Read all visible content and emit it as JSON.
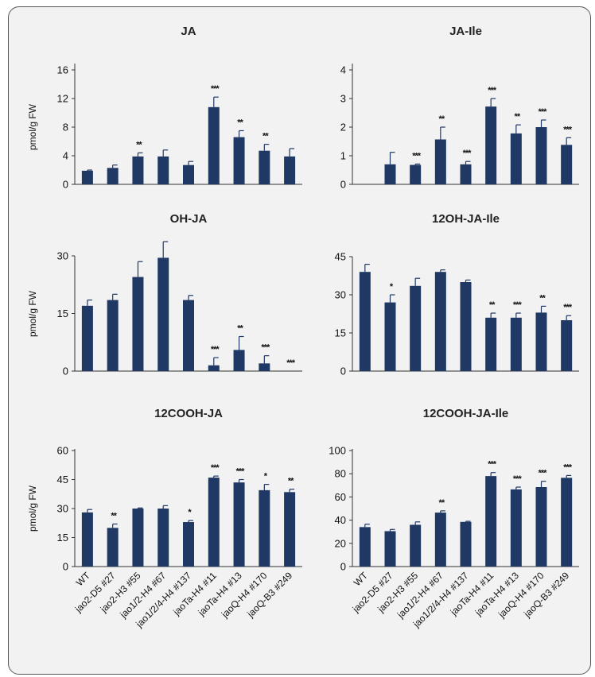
{
  "colors": {
    "bar": "#1f3864",
    "axis": "#333333",
    "frame": "#555555",
    "background": "#f2f2f2"
  },
  "categories": [
    "WT",
    "jao2-D5 #27",
    "jao2-H3 #55",
    "jao1/2-H4 #67",
    "jao1/2/4-H4 #137",
    "jaoTa-H4 #11",
    "jaoTa-H4 #13",
    "jaoQ-H4 #170",
    "jaoQ-B3 #249"
  ],
  "chart_data": [
    {
      "type": "bar",
      "title": "JA",
      "ylabel": "pmol/g FW",
      "ylim": [
        0,
        16
      ],
      "yticks": [
        0,
        4,
        8,
        12,
        16
      ],
      "values": [
        1.9,
        2.3,
        3.9,
        3.9,
        2.7,
        10.8,
        6.6,
        4.7,
        3.9
      ],
      "errors": [
        0.1,
        0.4,
        0.5,
        0.9,
        0.5,
        1.4,
        0.9,
        0.9,
        1.1
      ],
      "significance": [
        "",
        "",
        "**",
        "",
        "",
        "***",
        "**",
        "**",
        ""
      ]
    },
    {
      "type": "bar",
      "title": "JA-Ile",
      "ylabel": "",
      "ylim": [
        0,
        4
      ],
      "yticks": [
        0,
        1,
        2,
        3,
        4
      ],
      "values": [
        0,
        0.7,
        0.68,
        1.57,
        0.7,
        2.72,
        1.78,
        2.0,
        1.38
      ],
      "errors": [
        0,
        0.42,
        0.03,
        0.43,
        0.1,
        0.28,
        0.3,
        0.25,
        0.25
      ],
      "significance": [
        "",
        "",
        "***",
        "**",
        "***",
        "***",
        "**",
        "***",
        "***"
      ]
    },
    {
      "type": "bar",
      "title": "OH-JA",
      "ylabel": "pmol/g FW",
      "ylim": [
        0,
        40
      ],
      "yticks": [
        0,
        15,
        30
      ],
      "values": [
        17.0,
        18.5,
        24.5,
        29.5,
        18.5,
        1.5,
        5.5,
        2.0,
        0
      ],
      "errors": [
        1.5,
        1.5,
        4.0,
        4.2,
        1.2,
        2.0,
        3.5,
        2.0,
        0
      ],
      "significance": [
        "",
        "",
        "",
        "",
        "",
        "***",
        "**",
        "***",
        "***"
      ]
    },
    {
      "type": "bar",
      "title": "12OH-JA-Ile",
      "ylabel": "",
      "ylim": [
        0,
        45
      ],
      "yticks": [
        0,
        15,
        30,
        45
      ],
      "values": [
        39.0,
        27.0,
        33.5,
        39.0,
        35.0,
        21.0,
        21.0,
        23.0,
        20.0
      ],
      "errors": [
        3.0,
        3.0,
        3.0,
        0.8,
        0.8,
        1.8,
        1.8,
        2.5,
        1.8
      ],
      "significance": [
        "",
        "*",
        "",
        "",
        "",
        "**",
        "***",
        "**",
        "***"
      ]
    },
    {
      "type": "bar",
      "title": "12COOH-JA",
      "ylabel": "pmol/g FW",
      "ylim": [
        0,
        60
      ],
      "yticks": [
        0,
        15,
        30,
        45,
        60
      ],
      "values": [
        28.0,
        20.0,
        30.0,
        30.0,
        23.0,
        46.0,
        43.5,
        39.5,
        38.5
      ],
      "errors": [
        1.5,
        2.0,
        0.3,
        1.5,
        0.8,
        0.8,
        1.5,
        3.0,
        1.5
      ],
      "significance": [
        "",
        "**",
        "",
        "",
        "*",
        "***",
        "***",
        "*",
        "**"
      ]
    },
    {
      "type": "bar",
      "title": "12COOH-JA-Ile",
      "ylabel": "",
      "ylim": [
        0,
        100
      ],
      "yticks": [
        0,
        20,
        40,
        60,
        80,
        100
      ],
      "values": [
        34.0,
        30.5,
        36.0,
        46.5,
        38.5,
        78.0,
        66.5,
        68.5,
        76.5
      ],
      "errors": [
        2.5,
        1.5,
        2.5,
        1.5,
        0.5,
        3.0,
        2.0,
        5.0,
        2.0
      ],
      "significance": [
        "",
        "",
        "",
        "**",
        "",
        "***",
        "***",
        "***",
        "***"
      ]
    }
  ]
}
